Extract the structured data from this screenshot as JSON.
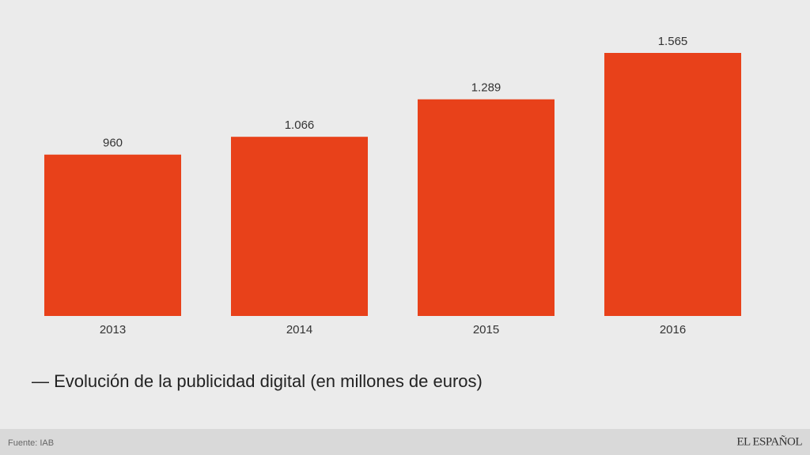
{
  "chart_data": {
    "type": "bar",
    "title": "— Evolución de la publicidad digital (en millones de euros)",
    "categories": [
      "2013",
      "2014",
      "2015",
      "2016"
    ],
    "values": [
      960,
      1066,
      1289,
      1565
    ],
    "value_labels": [
      "960",
      "1.066",
      "1.289",
      "1.565"
    ],
    "color": "#e8411a",
    "source": "Fuente: IAB",
    "brand": "EL ESPAÑOL"
  }
}
